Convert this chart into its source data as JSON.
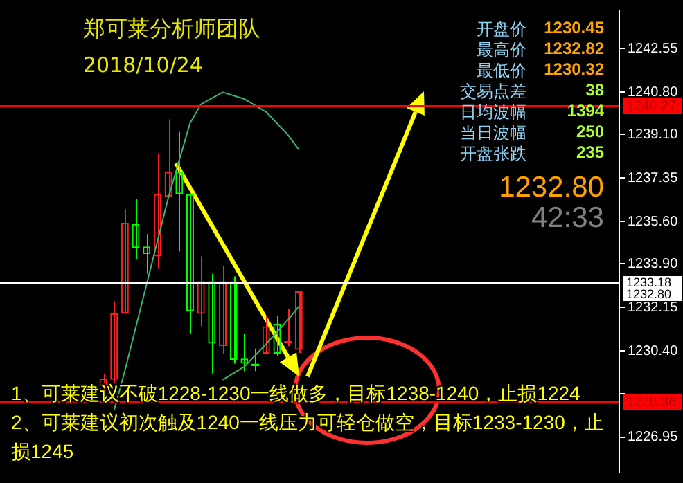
{
  "chart_data": {
    "type": "candlestick",
    "title": "郑可莱分析师团队",
    "subtitle": "2018/10/24",
    "categories": [
      null,
      null,
      null,
      null,
      null,
      null,
      null,
      null,
      null,
      null,
      null,
      null,
      null,
      null,
      null,
      null,
      null,
      null,
      null,
      null,
      null,
      null,
      null,
      null,
      null,
      null,
      null,
      null,
      null,
      null,
      null,
      null,
      null,
      null,
      null,
      null,
      null,
      null,
      null,
      null,
      null,
      null,
      null,
      null,
      null,
      null,
      null,
      null,
      null,
      null,
      null,
      null,
      null,
      null,
      null,
      null,
      null
    ],
    "ohlc": [
      null,
      null,
      null,
      null,
      null,
      null,
      null,
      null,
      null,
      [
        1229.0,
        1229.5,
        1228.8,
        1229.3
      ],
      [
        1229.25,
        1232.4,
        1229.1,
        1231.92
      ],
      [
        1231.92,
        1236.1,
        1231.9,
        1235.55
      ],
      [
        1235.5,
        1236.5,
        1234.1,
        1234.54
      ],
      [
        1234.6,
        1235.1,
        1233.5,
        1234.3
      ],
      [
        1234.2,
        1238.3,
        1233.7,
        1236.7
      ],
      [
        1236.6,
        1239.7,
        1236.6,
        1237.6
      ],
      [
        1237.6,
        1239.2,
        1234.4,
        1236.7
      ],
      [
        1236.7,
        1236.7,
        1231.1,
        1232.0
      ],
      [
        1231.9,
        1234.2,
        1231.4,
        1233.2
      ],
      [
        1233.2,
        1233.5,
        1229.5,
        1230.7
      ],
      [
        1230.6,
        1233.8,
        1230.3,
        1233.2
      ],
      [
        1233.2,
        1233.4,
        1229.9,
        1230.05
      ],
      [
        1230.1,
        1231.1,
        1229.6,
        1229.9
      ],
      [
        1229.9,
        1230.5,
        1229.6,
        1229.8
      ],
      [
        1230.3,
        1231.8,
        1230.3,
        1231.4
      ],
      [
        1231.5,
        1231.8,
        1230.2,
        1230.3
      ],
      [
        1230.7,
        1232.1,
        1230.6,
        1230.8
      ],
      [
        1230.45,
        1232.82,
        1230.32,
        1232.8
      ],
      null,
      null,
      null,
      null,
      null,
      null,
      null,
      null,
      null,
      null,
      null,
      null,
      null,
      null,
      null,
      null,
      null,
      null,
      null,
      null,
      null,
      null,
      null,
      null,
      null,
      null,
      null,
      null,
      null
    ],
    "colors": [
      null,
      null,
      null,
      null,
      null,
      null,
      null,
      null,
      null,
      "#ff2020",
      "#ff2020",
      "#ff2020",
      "#00ff00",
      "#00ff00",
      "#ff2020",
      "#ff2020",
      "#00ff00",
      "#00ff00",
      "#ff2020",
      "#00ff00",
      "#ff2020",
      "#00ff00",
      "#00ff00",
      "#00ff00",
      "#ff2020",
      "#00ff00",
      "#ff2020",
      "#ff2020",
      null,
      null,
      null,
      null,
      null,
      null,
      null,
      null,
      null,
      null,
      null,
      null,
      null,
      null,
      null,
      null,
      null,
      null,
      null,
      null,
      null,
      null,
      null,
      null,
      null,
      null,
      null,
      null,
      null
    ],
    "series": [
      {
        "type": "line",
        "color": "#3cb371",
        "values": [
          null,
          null,
          null,
          null,
          null,
          null,
          null,
          null,
          null,
          null,
          1228.02,
          1229.62,
          null,
          1233.09,
          null,
          1236.57,
          null,
          1239.56,
          1240.31,
          null,
          1240.79,
          null,
          1240.52,
          null,
          1240.0,
          null,
          1239.08,
          1238.49,
          null,
          null,
          null,
          null,
          null,
          null,
          null,
          null,
          null,
          null,
          null,
          null,
          null,
          null,
          null,
          null,
          null,
          null,
          null,
          null,
          null,
          null,
          null,
          null,
          null,
          null,
          null,
          null,
          null
        ]
      },
      {
        "type": "line",
        "color": "#3cb371",
        "values": [
          null,
          null,
          null,
          null,
          null,
          null,
          null,
          null,
          null,
          null,
          null,
          null,
          null,
          null,
          null,
          null,
          null,
          null,
          null,
          null,
          1229.25,
          null,
          1229.78,
          null,
          1230.69,
          null,
          1231.65,
          1232.19,
          null,
          null,
          null,
          null,
          null,
          null,
          null,
          null,
          null,
          null,
          null,
          null,
          null,
          null,
          null,
          null,
          null,
          null,
          null,
          null,
          null,
          null,
          null,
          null,
          null,
          null,
          null,
          null,
          null
        ]
      }
    ],
    "ylim": [
      1225.55,
      1244.05
    ],
    "yticks": [
      {
        "value": 1226.95,
        "label": "1226.95"
      },
      {
        "value": 1228.7,
        "label": null
      },
      {
        "value": 1230.4,
        "label": "1230.40"
      },
      {
        "value": 1232.15,
        "label": "1232.15"
      },
      {
        "value": 1233.9,
        "label": "1233.90"
      },
      {
        "value": 1235.6,
        "label": "1235.60"
      },
      {
        "value": 1237.35,
        "label": "1237.35"
      },
      {
        "value": 1239.1,
        "label": "1239.10"
      },
      {
        "value": 1240.8,
        "label": "1240.80"
      },
      {
        "value": 1242.55,
        "label": "1242.55"
      }
    ],
    "tick_labels": "y",
    "grid": false,
    "legend": false,
    "ref_lines": [
      {
        "axis": "y",
        "value": 1240.27,
        "label": "1240.27",
        "color": "#ff0000"
      },
      {
        "axis": "y",
        "value": 1233.18,
        "label": "1233.18",
        "color": "#ffffff"
      },
      {
        "axis": "y",
        "value": 1228.36,
        "label": "1228.36",
        "color": "#ff0000"
      }
    ],
    "annotations": [
      "1232.80",
      "开盘价",
      "1230.45",
      "最高价",
      "1232.82",
      "最低价",
      "1230.32",
      "交易点差",
      "38",
      "日均波幅",
      "1394",
      "当日波幅",
      "250",
      "开盘张跌",
      "235",
      "1232.80",
      "42:33",
      "1、可莱建议不破1228-1230一线做多，目标1238-1240，止损1224",
      "2、可莱建议初次触及1240一线压力可轻仓做空，目标1233-1230，止损1245"
    ]
  }
}
